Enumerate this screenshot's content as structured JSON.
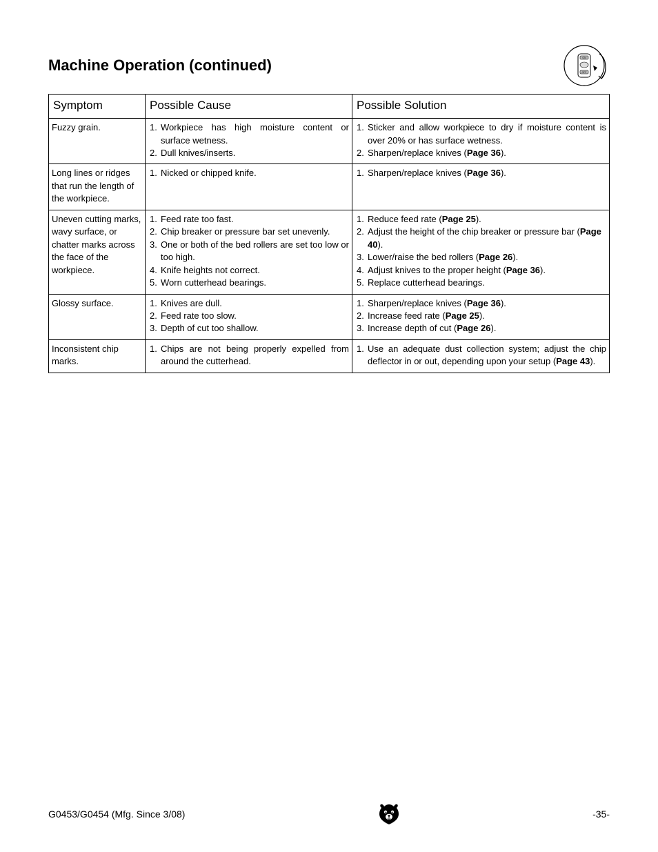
{
  "title": "Machine Operation (continued)",
  "headers": {
    "symptom": "Symptom",
    "cause": "Possible Cause",
    "solution": "Possible Solution"
  },
  "switch_labels": {
    "on": "ON",
    "off": "OFF"
  },
  "rows": [
    {
      "symptom": "Fuzzy grain.",
      "causes": [
        {
          "n": "1.",
          "t": "Workpiece has high moisture content or surface wetness.",
          "j": true
        },
        {
          "n": "2.",
          "t": "Dull knives/inserts."
        }
      ],
      "solutions": [
        {
          "n": "1.",
          "t": "Sticker and allow workpiece to dry if moisture content is over 20% or has surface wetness.",
          "j": true
        },
        {
          "n": "2.",
          "pre": "Sharpen/replace knives (",
          "bold": "Page 36",
          "post": ")."
        }
      ]
    },
    {
      "symptom": "Long lines or ridges that run the length of the workpiece.",
      "causes": [
        {
          "n": "1.",
          "t": "Nicked or chipped knife."
        }
      ],
      "solutions": [
        {
          "n": "1.",
          "pre": "Sharpen/replace knives (",
          "bold": "Page 36",
          "post": ")."
        }
      ]
    },
    {
      "symptom": "Uneven cutting marks, wavy surface, or chatter marks across the face of the workpiece.",
      "causes": [
        {
          "n": "1.",
          "t": "Feed rate too fast."
        },
        {
          "n": "2.",
          "t": "Chip breaker or pressure bar set unevenly."
        },
        {
          "n": "3.",
          "t": "One or both of the bed rollers are set too low or too high.",
          "j": true
        },
        {
          "n": "4.",
          "t": "Knife heights not correct."
        },
        {
          "n": "5.",
          "t": "Worn cutterhead bearings."
        }
      ],
      "solutions": [
        {
          "n": "1.",
          "pre": "Reduce feed rate (",
          "bold": "Page 25",
          "post": ")."
        },
        {
          "n": "2.",
          "pre": "Adjust the height of the chip breaker or pressure bar (",
          "bold": "Page 40",
          "post": ")."
        },
        {
          "n": "3.",
          "pre": "Lower/raise the bed rollers (",
          "bold": "Page 26",
          "post": ")."
        },
        {
          "n": "4.",
          "pre": "Adjust knives to the proper height (",
          "bold": "Page 36",
          "post": ")."
        },
        {
          "n": "5.",
          "t": "Replace cutterhead bearings."
        }
      ]
    },
    {
      "symptom": "Glossy surface.",
      "causes": [
        {
          "n": "1.",
          "t": "Knives are dull."
        },
        {
          "n": "2.",
          "t": "Feed rate too slow."
        },
        {
          "n": "3.",
          "t": "Depth of cut too shallow."
        }
      ],
      "solutions": [
        {
          "n": "1.",
          "pre": "Sharpen/replace knives (",
          "bold": "Page 36",
          "post": ")."
        },
        {
          "n": "2.",
          "pre": "Increase feed rate (",
          "bold": "Page 25",
          "post": ")."
        },
        {
          "n": "3.",
          "pre": "Increase depth of cut (",
          "bold": "Page 26",
          "post": ")."
        }
      ]
    },
    {
      "symptom": "Inconsistent chip marks.",
      "causes": [
        {
          "n": "1.",
          "t": "Chips are not being properly expelled from around the cutterhead.",
          "j": true
        }
      ],
      "solutions": [
        {
          "n": "1.",
          "pre": "Use an adequate dust collection system; adjust the chip deflector in or out, depending upon your setup (",
          "bold": "Page 43",
          "post": ").",
          "j": true
        }
      ]
    }
  ],
  "footer": {
    "left": "G0453/G0454 (Mfg. Since 3/08)",
    "right": "-35-"
  },
  "colors": {
    "text": "#000000",
    "border": "#000000",
    "bg": "#ffffff"
  },
  "font_sizes": {
    "title": 22,
    "header": 17,
    "body": 13,
    "footer": 14
  }
}
